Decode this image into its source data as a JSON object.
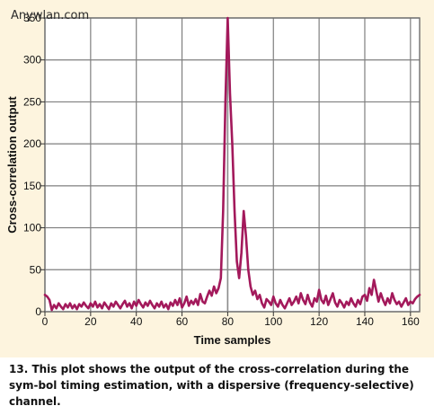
{
  "watermark": "Anywlan.com",
  "caption": {
    "number": "13.",
    "text": "This plot shows the output of the cross-correlation during the sym-bol timing estimation, with a dispersive (frequency-selective) channel."
  },
  "colors": {
    "background": "#FDF4DE",
    "plot_area": "#FFFFFF",
    "grid": "#7F7F7F",
    "series": "#A3195B",
    "marker_line": "#8C8C8C"
  },
  "chart_data": {
    "type": "line",
    "xlabel": "Time samples",
    "ylabel": "Cross-correlation output",
    "xlim": [
      0,
      164
    ],
    "ylim": [
      0,
      350
    ],
    "grid": true,
    "x_ticks": [
      0,
      20,
      40,
      60,
      80,
      100,
      120,
      140,
      160
    ],
    "y_ticks": [
      0,
      50,
      100,
      150,
      200,
      250,
      300,
      350
    ],
    "vertical_marker_x": 80,
    "series": [
      {
        "x": [
          0,
          1,
          2,
          3,
          4,
          5,
          6,
          7,
          8,
          9,
          10,
          11,
          12,
          13,
          14,
          15,
          16,
          17,
          18,
          19,
          20,
          21,
          22,
          23,
          24,
          25,
          26,
          27,
          28,
          29,
          30,
          31,
          32,
          33,
          34,
          35,
          36,
          37,
          38,
          39,
          40,
          41,
          42,
          43,
          44,
          45,
          46,
          47,
          48,
          49,
          50,
          51,
          52,
          53,
          54,
          55,
          56,
          57,
          58,
          59,
          60,
          61,
          62,
          63,
          64,
          65,
          66,
          67,
          68,
          69,
          70,
          71,
          72,
          73,
          74,
          75,
          76,
          77,
          78,
          79,
          80,
          81,
          82,
          83,
          84,
          85,
          86,
          87,
          88,
          89,
          90,
          91,
          92,
          93,
          94,
          95,
          96,
          97,
          98,
          99,
          100,
          101,
          102,
          103,
          104,
          105,
          106,
          107,
          108,
          109,
          110,
          111,
          112,
          113,
          114,
          115,
          116,
          117,
          118,
          119,
          120,
          121,
          122,
          123,
          124,
          125,
          126,
          127,
          128,
          129,
          130,
          131,
          132,
          133,
          134,
          135,
          136,
          137,
          138,
          139,
          140,
          141,
          142,
          143,
          144,
          145,
          146,
          147,
          148,
          149,
          150,
          151,
          152,
          153,
          154,
          155,
          156,
          157,
          158,
          159,
          160,
          161,
          162,
          163,
          164
        ],
        "values": [
          20,
          18,
          14,
          2,
          8,
          4,
          10,
          6,
          3,
          9,
          5,
          10,
          4,
          8,
          3,
          9,
          6,
          11,
          7,
          4,
          10,
          6,
          12,
          5,
          9,
          4,
          11,
          7,
          3,
          10,
          6,
          12,
          8,
          4,
          9,
          13,
          6,
          10,
          4,
          12,
          7,
          14,
          9,
          5,
          11,
          7,
          13,
          8,
          4,
          10,
          6,
          12,
          5,
          9,
          3,
          11,
          7,
          14,
          8,
          16,
          5,
          10,
          18,
          7,
          13,
          9,
          15,
          8,
          21,
          12,
          10,
          18,
          25,
          19,
          30,
          22,
          28,
          40,
          120,
          250,
          350,
          260,
          200,
          120,
          60,
          40,
          70,
          120,
          90,
          50,
          30,
          20,
          25,
          15,
          20,
          10,
          5,
          15,
          12,
          8,
          18,
          10,
          6,
          14,
          8,
          4,
          10,
          16,
          8,
          12,
          18,
          10,
          22,
          14,
          9,
          20,
          11,
          6,
          16,
          12,
          26,
          14,
          10,
          19,
          8,
          15,
          22,
          11,
          6,
          14,
          10,
          5,
          12,
          8,
          16,
          10,
          6,
          14,
          9,
          18,
          20,
          13,
          28,
          20,
          38,
          25,
          12,
          22,
          14,
          8,
          16,
          10,
          22,
          14,
          9,
          12,
          6,
          11,
          16,
          8,
          12,
          10,
          15,
          18,
          20
        ]
      }
    ]
  }
}
